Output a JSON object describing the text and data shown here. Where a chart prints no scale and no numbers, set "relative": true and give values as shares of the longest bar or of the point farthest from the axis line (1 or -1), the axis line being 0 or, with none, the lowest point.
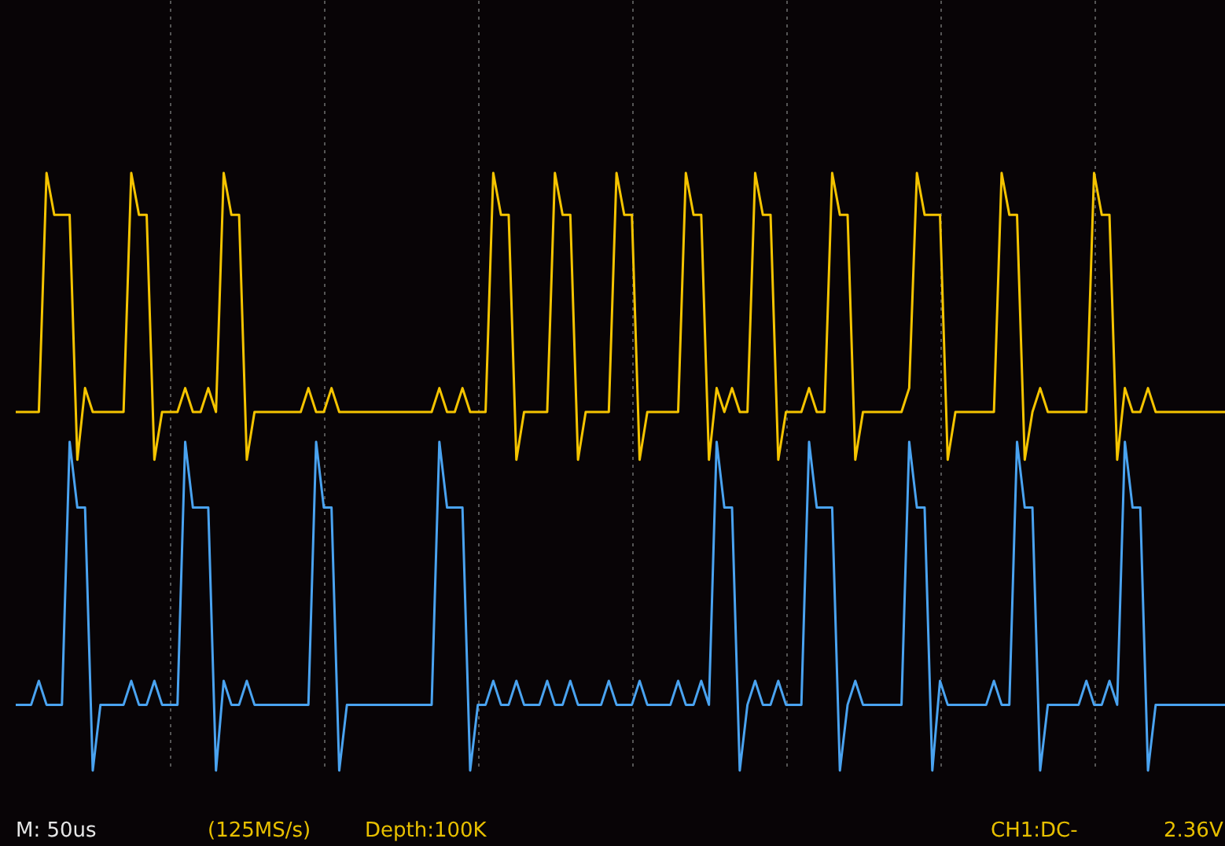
{
  "chart_data": {
    "type": "line",
    "relative": true,
    "grid": "x",
    "legend": false,
    "marker": "none",
    "line_style": "solid",
    "categories": [
      null,
      null,
      null,
      null,
      null,
      null,
      null,
      null,
      null,
      null,
      null,
      null,
      null,
      null,
      null,
      null,
      null,
      null,
      null,
      null,
      null,
      null,
      null,
      null,
      null,
      null,
      null,
      null,
      null,
      null,
      null,
      null,
      null,
      null,
      null,
      null,
      null,
      null,
      null,
      null,
      null,
      null,
      null,
      null,
      null,
      null,
      null,
      null,
      null,
      null,
      null,
      null,
      null,
      null,
      null,
      null,
      null,
      null,
      null,
      null,
      null,
      null,
      null,
      null,
      null,
      null,
      null,
      null,
      null,
      null,
      null,
      null,
      null,
      null,
      null,
      null,
      null,
      null,
      null,
      null,
      null,
      null,
      null,
      null,
      null,
      null,
      null,
      null,
      null,
      null,
      null,
      null,
      null,
      null,
      null,
      null,
      null,
      null,
      null,
      null,
      null,
      null,
      null,
      null,
      null,
      null,
      null,
      null,
      null,
      null,
      null,
      null,
      null,
      null,
      null,
      null,
      null,
      null,
      null,
      null,
      null,
      null,
      null,
      null,
      null,
      null,
      null,
      null,
      null,
      null,
      null,
      null,
      null,
      null,
      null,
      null,
      null,
      null,
      null,
      null,
      null,
      null,
      null,
      null,
      null,
      null,
      null,
      null,
      null,
      null,
      null,
      null,
      null,
      null,
      null,
      null,
      null,
      null
    ],
    "annotations": [
      "M: 50us",
      "(125MS/s)",
      "Depth:100K",
      "CH1:DC-",
      "2.36V"
    ],
    "series": [
      {
        "color": "#f5c400",
        "values": [
          0.6,
          0.6,
          0.6,
          0.6,
          1.0,
          0.93,
          0.93,
          0.93,
          0.52,
          0.64,
          0.6,
          0.6,
          0.6,
          0.6,
          0.6,
          1.0,
          0.93,
          0.93,
          0.52,
          0.6,
          0.6,
          0.6,
          0.64,
          0.6,
          0.6,
          0.64,
          0.6,
          1.0,
          0.93,
          0.93,
          0.52,
          0.6,
          0.6,
          0.6,
          0.6,
          0.6,
          0.6,
          0.6,
          0.64,
          0.6,
          0.6,
          0.64,
          0.6,
          0.6,
          0.6,
          0.6,
          0.6,
          0.6,
          0.6,
          0.6,
          0.6,
          0.6,
          0.6,
          0.6,
          0.6,
          0.64,
          0.6,
          0.6,
          0.64,
          0.6,
          0.6,
          0.6,
          1.0,
          0.93,
          0.93,
          0.52,
          0.6,
          0.6,
          0.6,
          0.6,
          1.0,
          0.93,
          0.93,
          0.52,
          0.6,
          0.6,
          0.6,
          0.6,
          1.0,
          0.93,
          0.93,
          0.52,
          0.6,
          0.6,
          0.6,
          0.6,
          0.6,
          1.0,
          0.93,
          0.93,
          0.52,
          0.64,
          0.6,
          0.64,
          0.6,
          0.6,
          1.0,
          0.93,
          0.93,
          0.52,
          0.6,
          0.6,
          0.6,
          0.64,
          0.6,
          0.6,
          1.0,
          0.93,
          0.93,
          0.52,
          0.6,
          0.6,
          0.6,
          0.6,
          0.6,
          0.6,
          0.64,
          1.0,
          0.93,
          0.93,
          0.93,
          0.52,
          0.6,
          0.6,
          0.6,
          0.6,
          0.6,
          0.6,
          1.0,
          0.93,
          0.93,
          0.52,
          0.6,
          0.64,
          0.6,
          0.6,
          0.6,
          0.6,
          0.6,
          0.6,
          1.0,
          0.93,
          0.93,
          0.52,
          0.64,
          0.6,
          0.6,
          0.64,
          0.6,
          0.6,
          0.6,
          0.6,
          0.6,
          0.6,
          0.6,
          0.6,
          0.6,
          0.6
        ]
      },
      {
        "color": "#4aa3f0",
        "values": [
          0.11,
          0.11,
          0.11,
          0.15,
          0.11,
          0.11,
          0.11,
          0.55,
          0.44,
          0.44,
          0,
          0.11,
          0.11,
          0.11,
          0.11,
          0.15,
          0.11,
          0.11,
          0.15,
          0.11,
          0.11,
          0.11,
          0.55,
          0.44,
          0.44,
          0.44,
          0,
          0.15,
          0.11,
          0.11,
          0.15,
          0.11,
          0.11,
          0.11,
          0.11,
          0.11,
          0.11,
          0.11,
          0.11,
          0.55,
          0.44,
          0.44,
          0,
          0.11,
          0.11,
          0.11,
          0.11,
          0.11,
          0.11,
          0.11,
          0.11,
          0.11,
          0.11,
          0.11,
          0.11,
          0.55,
          0.44,
          0.44,
          0.44,
          0,
          0.11,
          0.11,
          0.15,
          0.11,
          0.11,
          0.15,
          0.11,
          0.11,
          0.11,
          0.15,
          0.11,
          0.11,
          0.15,
          0.11,
          0.11,
          0.11,
          0.11,
          0.15,
          0.11,
          0.11,
          0.11,
          0.15,
          0.11,
          0.11,
          0.11,
          0.11,
          0.15,
          0.11,
          0.11,
          0.15,
          0.11,
          0.55,
          0.44,
          0.44,
          0,
          0.11,
          0.15,
          0.11,
          0.11,
          0.15,
          0.11,
          0.11,
          0.11,
          0.55,
          0.44,
          0.44,
          0.44,
          0,
          0.11,
          0.15,
          0.11,
          0.11,
          0.11,
          0.11,
          0.11,
          0.11,
          0.55,
          0.44,
          0.44,
          0,
          0.15,
          0.11,
          0.11,
          0.11,
          0.11,
          0.11,
          0.11,
          0.15,
          0.11,
          0.11,
          0.55,
          0.44,
          0.44,
          0,
          0.11,
          0.11,
          0.11,
          0.11,
          0.11,
          0.15,
          0.11,
          0.11,
          0.15,
          0.11,
          0.55,
          0.44,
          0.44,
          0,
          0.11,
          0.11,
          0.11,
          0.11,
          0.11,
          0.11,
          0.11,
          0.11,
          0.11,
          0.11
        ]
      }
    ]
  }
}
